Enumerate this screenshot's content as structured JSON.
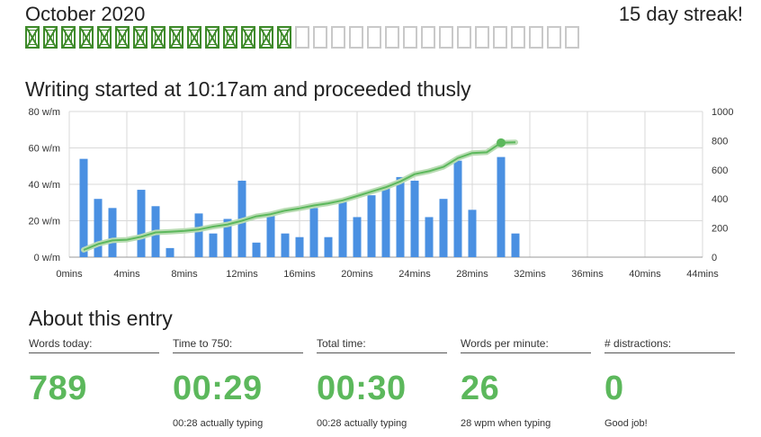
{
  "header": {
    "month": "October 2020",
    "streak": "15 day streak!",
    "days_completed": 15,
    "days_total": 31
  },
  "chart_title": "Writing started at 10:17am and proceeded thusly",
  "chart_data": {
    "type": "bar",
    "y_left_ticks": [
      "0 w/m",
      "20 w/m",
      "40 w/m",
      "60 w/m",
      "80 w/m"
    ],
    "y_left_range": [
      0,
      80
    ],
    "y_right_ticks": [
      "0",
      "200",
      "400",
      "600",
      "800",
      "1000"
    ],
    "y_right_range": [
      0,
      1000
    ],
    "x_ticks": [
      "0mins",
      "4mins",
      "8mins",
      "12mins",
      "16mins",
      "20mins",
      "24mins",
      "28mins",
      "32mins",
      "36mins",
      "40mins",
      "44mins"
    ],
    "x_range": [
      0,
      44
    ],
    "series": [
      {
        "type": "bar",
        "unit": "w/m",
        "x": [
          1,
          2,
          3,
          5,
          6,
          7,
          9,
          10,
          11,
          12,
          13,
          14,
          15,
          16,
          17,
          18,
          19,
          20,
          21,
          22,
          23,
          24,
          25,
          26,
          27,
          28,
          30,
          31
        ],
        "values": [
          54,
          32,
          27,
          37,
          28,
          5,
          24,
          13,
          21,
          42,
          8,
          23,
          13,
          11,
          27,
          11,
          32,
          22,
          34,
          38,
          44,
          42,
          22,
          32,
          53,
          26,
          55,
          13
        ]
      },
      {
        "type": "line",
        "unit": "words",
        "x": [
          1,
          2,
          3,
          4,
          5,
          6,
          7,
          8,
          9,
          10,
          11,
          12,
          13,
          14,
          15,
          16,
          17,
          18,
          19,
          20,
          21,
          22,
          23,
          24,
          25,
          26,
          27,
          28,
          29,
          30,
          31
        ],
        "values": [
          50,
          90,
          115,
          120,
          140,
          170,
          175,
          180,
          190,
          210,
          225,
          250,
          280,
          295,
          320,
          335,
          355,
          370,
          390,
          420,
          450,
          480,
          520,
          570,
          590,
          620,
          680,
          715,
          720,
          785,
          789
        ]
      }
    ],
    "colors": {
      "bars": "#4a90e2",
      "line": "#5cb85c",
      "grid": "#d9d9d9"
    }
  },
  "about": {
    "title": "About this entry",
    "stats": [
      {
        "label": "Words today:",
        "value": "789",
        "note": ""
      },
      {
        "label": "Time to 750:",
        "value": "00:29",
        "note": "00:28 actually typing"
      },
      {
        "label": "Total time:",
        "value": "00:30",
        "note": "00:28 actually typing"
      },
      {
        "label": "Words per minute:",
        "value": "26",
        "note": "28 wpm when typing"
      },
      {
        "label": "# distractions:",
        "value": "0",
        "note": "Good job!"
      }
    ]
  }
}
